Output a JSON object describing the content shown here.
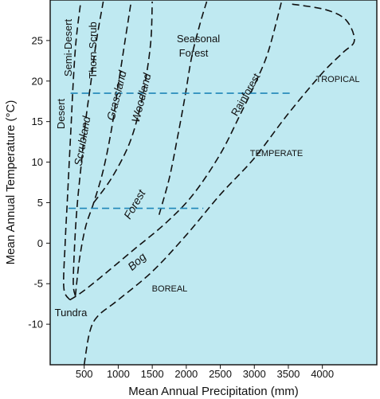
{
  "chart_data": {
    "type": "diagram",
    "xlabel": "Mean Annual Precipitation (mm)",
    "ylabel": "Mean Annual Temperature (°C)",
    "xlim": [
      0,
      4800
    ],
    "ylim": [
      -15,
      30
    ],
    "x_ticks": [
      "500",
      "1000",
      "1500",
      "2000",
      "2500",
      "3000",
      "3500",
      "4000"
    ],
    "x_tick_values": [
      500,
      1000,
      1500,
      2000,
      2500,
      3000,
      3500,
      4000
    ],
    "y_ticks": [
      "25",
      "20",
      "15",
      "10",
      "5",
      "0",
      "-5",
      "-10"
    ],
    "y_tick_values": [
      25,
      20,
      15,
      10,
      5,
      0,
      -5,
      -10
    ],
    "background_color": "#bfe9f1",
    "boundary_color": "#111111",
    "threshold_color": "#1f86b8",
    "biome_labels": {
      "desert": "Desert",
      "semi_desert": "Semi-Desert",
      "thorn_scrub": "Thorn Scrub",
      "scrubland": "Scrubland",
      "grassland": "Grassland",
      "woodland": "Woodland",
      "seasonal": "Seasonal",
      "forest_upper": "Forest",
      "rainforest": "Rainforest",
      "forest": "Forest",
      "bog": "Bog",
      "tundra": "Tundra"
    },
    "zone_labels": {
      "tropical": "TROPICAL",
      "temperate": "TEMPERATE",
      "boreal": "BOREAL"
    },
    "thresholds": [
      {
        "temperature": 18.5,
        "precip_start": 300,
        "precip_end": 3550
      },
      {
        "temperature": 4.3,
        "precip_start": 270,
        "precip_end": 2250
      }
    ],
    "boundaries": [
      {
        "name": "outer",
        "points": [
          [
            500,
            -15
          ],
          [
            580,
            -11
          ],
          [
            700,
            -9
          ],
          [
            1000,
            -7
          ],
          [
            1500,
            -3.5
          ],
          [
            2000,
            1
          ],
          [
            2500,
            6
          ],
          [
            3000,
            10.5
          ],
          [
            3500,
            16
          ],
          [
            4000,
            21
          ],
          [
            4300,
            23.5
          ],
          [
            4470,
            25
          ],
          [
            4350,
            27.5
          ],
          [
            4050,
            28.8
          ],
          [
            3550,
            29.5
          ]
        ]
      },
      {
        "name": "inner-tundra",
        "points": [
          [
            290,
            -7
          ],
          [
            440,
            -6.2
          ],
          [
            700,
            -4.5
          ],
          [
            1200,
            -1
          ],
          [
            1700,
            2.5
          ],
          [
            2100,
            6
          ],
          [
            2500,
            11
          ],
          [
            2800,
            16
          ],
          [
            3000,
            19.5
          ],
          [
            3200,
            23.5
          ],
          [
            3400,
            29.8
          ]
        ]
      },
      {
        "name": "desert",
        "points": [
          [
            290,
            -7
          ],
          [
            200,
            -5.5
          ],
          [
            220,
            0
          ],
          [
            250,
            5
          ],
          [
            280,
            10
          ],
          [
            310,
            15
          ],
          [
            340,
            20
          ],
          [
            380,
            25
          ],
          [
            450,
            29.8
          ]
        ]
      },
      {
        "name": "desert-scrub",
        "points": [
          [
            370,
            -6.5
          ],
          [
            340,
            -5
          ],
          [
            360,
            0
          ],
          [
            400,
            5
          ],
          [
            460,
            10
          ],
          [
            520,
            15
          ],
          [
            600,
            20
          ],
          [
            680,
            25
          ],
          [
            780,
            29.8
          ]
        ]
      },
      {
        "name": "scrub-grass",
        "points": [
          [
            370,
            -6.5
          ],
          [
            430,
            -2
          ],
          [
            520,
            2
          ],
          [
            640,
            5
          ],
          [
            780,
            9
          ],
          [
            900,
            14
          ],
          [
            1000,
            19.5
          ],
          [
            1100,
            25
          ],
          [
            1190,
            29.8
          ]
        ]
      },
      {
        "name": "grass-wood",
        "points": [
          [
            640,
            5
          ],
          [
            900,
            8
          ],
          [
            1150,
            12
          ],
          [
            1300,
            16
          ],
          [
            1400,
            20
          ],
          [
            1480,
            25
          ],
          [
            1500,
            29.8
          ]
        ]
      },
      {
        "name": "wood-forest",
        "points": [
          [
            1600,
            3.5
          ],
          [
            1750,
            8
          ],
          [
            1870,
            13
          ],
          [
            1980,
            18
          ],
          [
            2080,
            23
          ],
          [
            2200,
            27
          ],
          [
            2300,
            29.8
          ]
        ]
      }
    ]
  }
}
